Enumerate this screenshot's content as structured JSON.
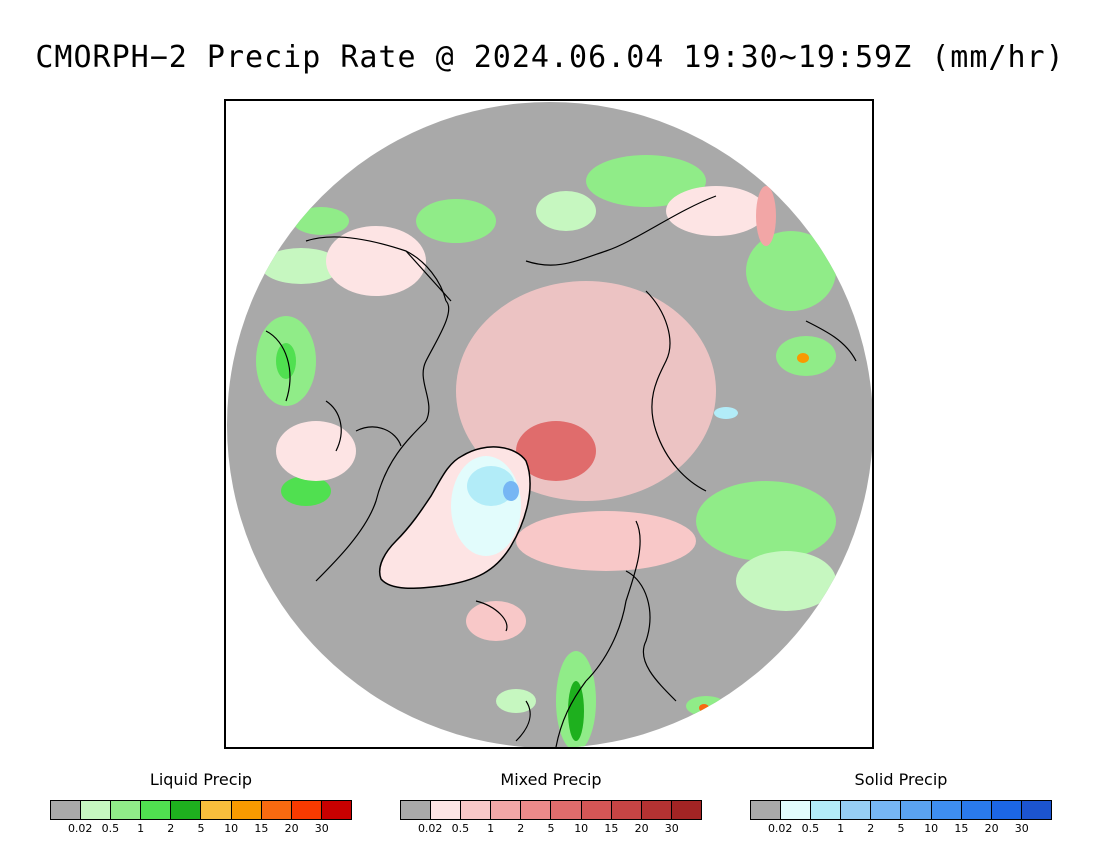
{
  "title": "CMORPH−2 Precip Rate @ 2024.06.04 19:30~19:59Z (mm/hr)",
  "map": {
    "projection": "north-polar-stereographic",
    "background_color": "#a9a9a9",
    "coastline_color": "#000000",
    "outside_color": "#ffffff"
  },
  "legends": [
    {
      "title": "Liquid Precip",
      "colors": [
        "#a9a9a9",
        "#c6f7c0",
        "#90ec88",
        "#50e050",
        "#1eb01e",
        "#f8be3c",
        "#f89a00",
        "#f86a10",
        "#f83a00",
        "#c80000"
      ],
      "ticks": [
        "0.02",
        "0.5",
        "1",
        "2",
        "5",
        "10",
        "15",
        "20",
        "30"
      ]
    },
    {
      "title": "Mixed Precip",
      "colors": [
        "#a9a9a9",
        "#fde4e4",
        "#f8c8c8",
        "#f2a6a6",
        "#ec8a8a",
        "#e06c6c",
        "#d45656",
        "#c64444",
        "#b43232",
        "#a22424"
      ],
      "ticks": [
        "0.02",
        "0.5",
        "1",
        "2",
        "5",
        "10",
        "15",
        "20",
        "30"
      ]
    },
    {
      "title": "Solid Precip",
      "colors": [
        "#a9a9a9",
        "#e2fcfc",
        "#b2ecf8",
        "#96cef4",
        "#76b6f4",
        "#5aa2f0",
        "#3e8ef0",
        "#2a7aec",
        "#1c66e4",
        "#1c54d0"
      ],
      "ticks": [
        "0.02",
        "0.5",
        "1",
        "2",
        "5",
        "10",
        "15",
        "20",
        "30"
      ]
    }
  ]
}
